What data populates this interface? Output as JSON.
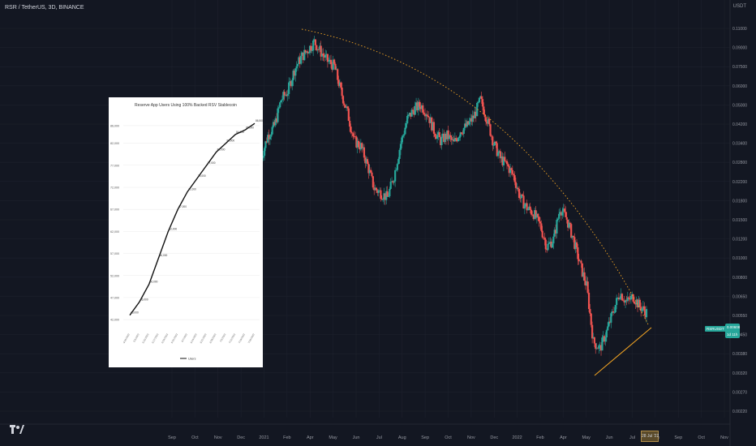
{
  "header": {
    "symbol": "RSR / TetherUS, 3D, BINANCE",
    "currency": "USDT"
  },
  "price_axis": {
    "labels": [
      "0.11000",
      "0.09000",
      "0.07500",
      "0.06000",
      "0.05000",
      "0.04200",
      "0.03400",
      "0.02800",
      "0.02200",
      "0.01800",
      "0.01500",
      "0.01200",
      "0.01000",
      "0.00800",
      "0.00650",
      "0.00550",
      "0.00450",
      "0.00380",
      "0.00320",
      "0.00270",
      "0.00220"
    ],
    "current_price": "0.00608",
    "current_symbol": "RSRUSDT",
    "countdown": "1d 11h"
  },
  "time_axis": {
    "labels": [
      "Sep",
      "Oct",
      "Nov",
      "Dec",
      "2021",
      "Feb",
      "Apr",
      "May",
      "Jun",
      "Jul",
      "Aug",
      "Sep",
      "Oct",
      "Nov",
      "Dec",
      "2022",
      "Feb",
      "Apr",
      "May",
      "Jun",
      "Jul",
      "Aug",
      "Sep",
      "Oct",
      "Nov"
    ],
    "highlight_date": "28 Jul '22"
  },
  "colors": {
    "background": "#131722",
    "up": "#26a69a",
    "down": "#ef5350",
    "trendline": "#f5a623",
    "grid": "#1e222d"
  },
  "chart_data": {
    "type": "candlestick",
    "title": "RSR / TetherUS, 3D, BINANCE",
    "y_scale": "log",
    "drawings": [
      {
        "type": "dotted-curve",
        "description": "resistance arc from peak to current"
      },
      {
        "type": "trendline",
        "description": "ascending support from May 2022 low"
      }
    ],
    "ohlc_close_path": [
      0.03,
      0.038,
      0.042,
      0.055,
      0.06,
      0.075,
      0.085,
      0.092,
      0.1,
      0.09,
      0.082,
      0.078,
      0.06,
      0.048,
      0.036,
      0.034,
      0.028,
      0.022,
      0.021,
      0.02,
      0.025,
      0.035,
      0.045,
      0.05,
      0.052,
      0.048,
      0.04,
      0.036,
      0.038,
      0.035,
      0.04,
      0.042,
      0.046,
      0.055,
      0.045,
      0.035,
      0.03,
      0.028,
      0.025,
      0.02,
      0.018,
      0.017,
      0.015,
      0.012,
      0.013,
      0.018,
      0.016,
      0.013,
      0.01,
      0.008,
      0.0045,
      0.0042,
      0.005,
      0.0062,
      0.0075,
      0.0068,
      0.0072,
      0.0065,
      0.0061
    ]
  },
  "inset_chart": {
    "title": "Reserve App Users Using 100% Backed RSV Stablecoin",
    "legend": "Users",
    "chart_data": {
      "type": "line",
      "x": [
        "4/26/2022",
        "5/3/2022",
        "5/10/2022",
        "5/17/2022",
        "5/24/2022",
        "5/31/2022",
        "6/7/2022",
        "6/14/2022",
        "6/21/2022",
        "6/28/2022",
        "7/5/2022",
        "7/12/2022",
        "7/19/2022",
        "7/26/2022"
      ],
      "y_ticks": [
        "42,000",
        "47,000",
        "52,000",
        "57,000",
        "62,000",
        "67,000",
        "72,000",
        "77,000",
        "82,000",
        "86,000"
      ],
      "series": [
        {
          "name": "Users",
          "values": [
            43000,
            46000,
            50000,
            56000,
            62000,
            67000,
            71000,
            74000,
            77000,
            80000,
            82000,
            84000,
            85000,
            86500
          ]
        }
      ]
    }
  }
}
